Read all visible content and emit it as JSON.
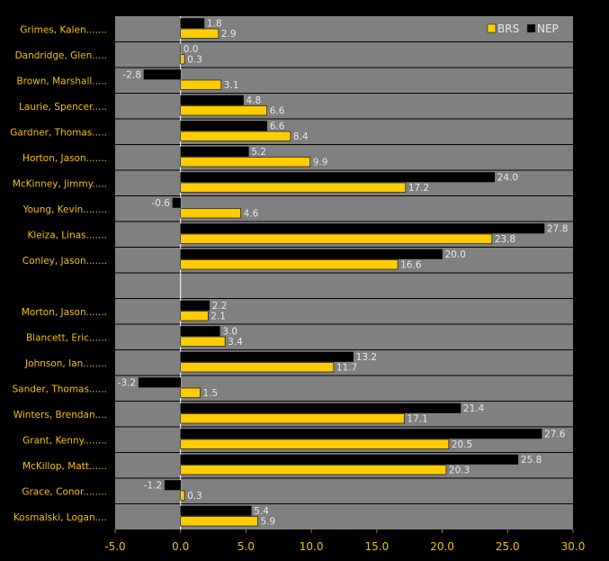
{
  "chart_data": {
    "type": "bar",
    "orientation": "horizontal",
    "categories": [
      "Grimes, Kalen.......",
      "Dandridge, Glen.....",
      "Brown, Marshall.....",
      "Laurie, Spencer.....",
      "Gardner, Thomas.....",
      "Horton, Jason.......",
      "McKinney, Jimmy.....",
      "Young, Kevin........",
      "Kleiza, Linas.......",
      "Conley, Jason.......",
      "",
      "Morton, Jason.......",
      "Blancett, Eric......",
      "Johnson, Ian........",
      "Sander, Thomas......",
      "Winters, Brendan....",
      "Grant, Kenny........",
      "McKillop, Matt......",
      "Grace, Conor........",
      "Kosmalski, Logan...."
    ],
    "series": [
      {
        "name": "NEP",
        "color": "#000000",
        "values": [
          1.8,
          0.0,
          -2.8,
          4.8,
          6.6,
          5.2,
          24.0,
          -0.6,
          27.8,
          20.0,
          null,
          2.2,
          3.0,
          13.2,
          -3.2,
          21.4,
          27.6,
          25.8,
          -1.2,
          5.4
        ],
        "labels": [
          "1.8",
          "0.0",
          "-2.8",
          "4.8",
          "6.6",
          "5.2",
          "24.0",
          "-0.6",
          "27.8",
          "20.0",
          "",
          "2.2",
          "3.0",
          "13.2",
          "-3.2",
          "21.4",
          "27.6",
          "25.8",
          "-1.2",
          "5.4"
        ]
      },
      {
        "name": "BRS",
        "color": "#ffcc00",
        "values": [
          2.9,
          0.3,
          3.1,
          6.6,
          8.4,
          9.9,
          17.2,
          4.6,
          23.8,
          16.6,
          null,
          2.1,
          3.4,
          11.7,
          1.5,
          17.1,
          20.5,
          20.3,
          0.3,
          5.9
        ],
        "labels": [
          "2.9",
          "0.3",
          "3.1",
          "6.6",
          "8.4",
          "9.9",
          "17.2",
          "4.6",
          "23.8",
          "16.6",
          "",
          "2.1",
          "3.4",
          "11.7",
          "1.5",
          "17.1",
          "20.5",
          "20.3",
          "0.3",
          "5.9"
        ]
      }
    ],
    "xlim": [
      -5.0,
      30.0
    ],
    "xticks": [
      "-5.0",
      "0.0",
      "5.0",
      "10.0",
      "15.0",
      "20.0",
      "25.0",
      "30.0"
    ],
    "legend_placement": "top-right",
    "legend": [
      "BRS",
      "NEP"
    ],
    "grid": "horizontal row separators",
    "plot_background": "#808080",
    "page_background": "#000000"
  }
}
